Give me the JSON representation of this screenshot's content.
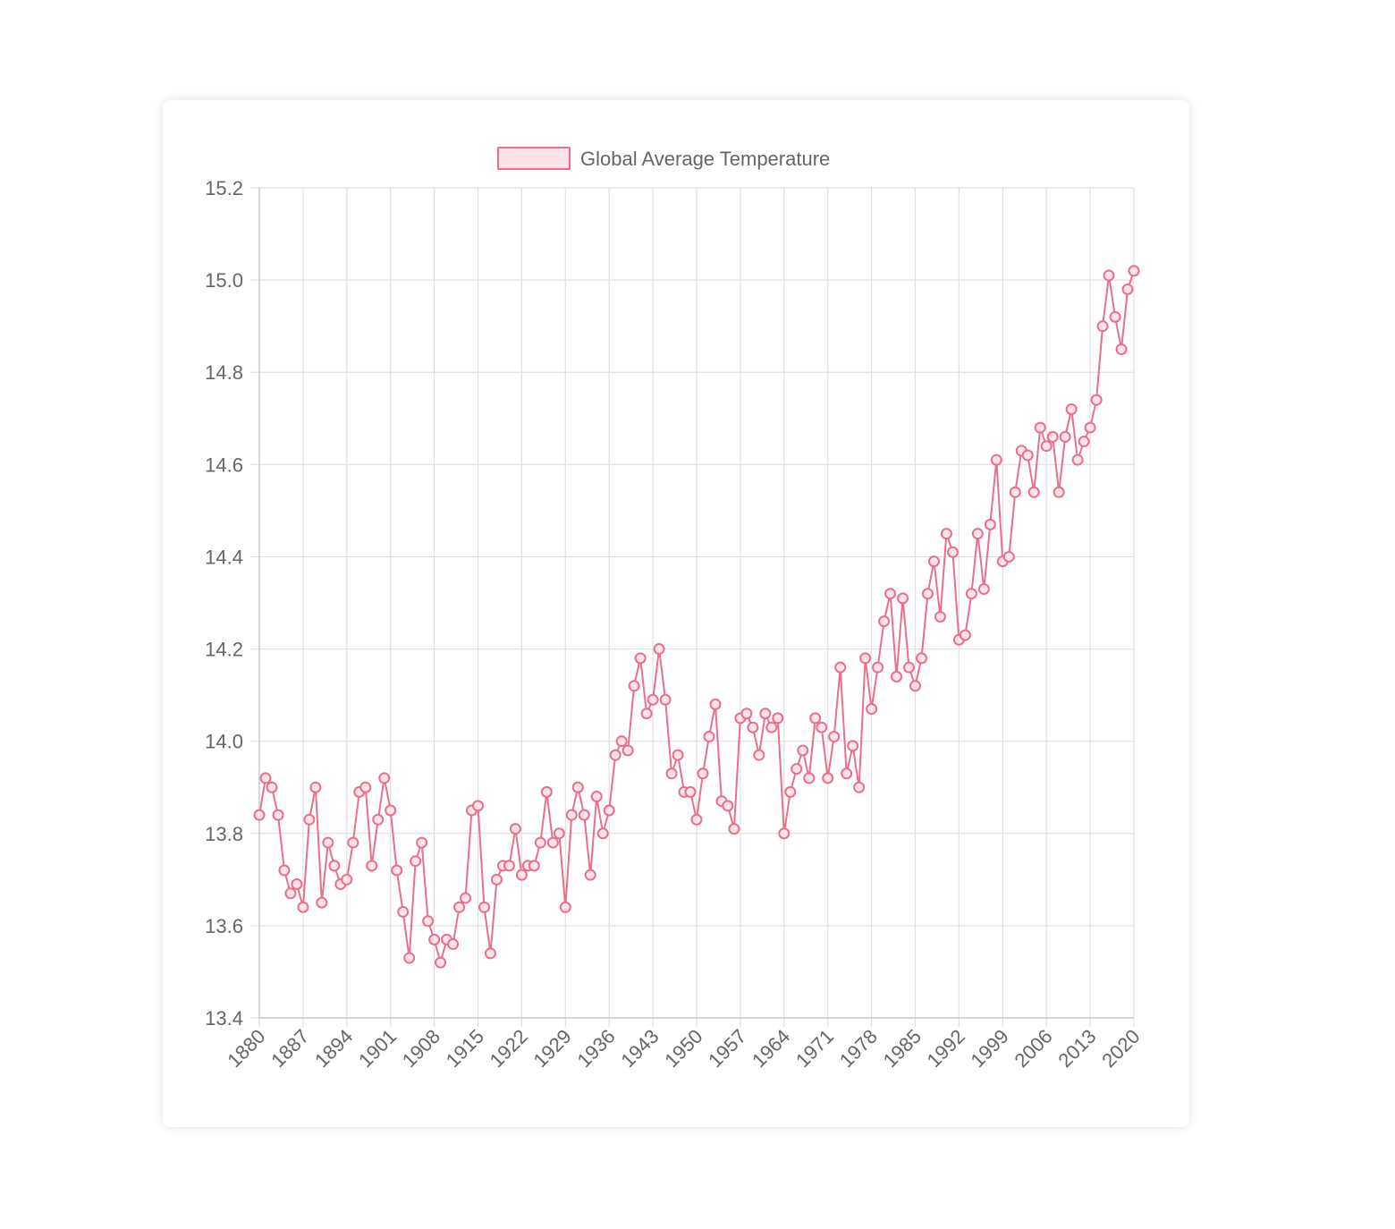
{
  "chart_data": {
    "type": "line",
    "legend_position": "top",
    "grid": true,
    "series": [
      {
        "name": "Global Average Temperature",
        "color": "#e8708a",
        "fill": "#fde2e7",
        "x": [
          1880,
          1881,
          1882,
          1883,
          1884,
          1885,
          1886,
          1887,
          1888,
          1889,
          1890,
          1891,
          1892,
          1893,
          1894,
          1895,
          1896,
          1897,
          1898,
          1899,
          1900,
          1901,
          1902,
          1903,
          1904,
          1905,
          1906,
          1907,
          1908,
          1909,
          1910,
          1911,
          1912,
          1913,
          1914,
          1915,
          1916,
          1917,
          1918,
          1919,
          1920,
          1921,
          1922,
          1923,
          1924,
          1925,
          1926,
          1927,
          1928,
          1929,
          1930,
          1931,
          1932,
          1933,
          1934,
          1935,
          1936,
          1937,
          1938,
          1939,
          1940,
          1941,
          1942,
          1943,
          1944,
          1945,
          1946,
          1947,
          1948,
          1949,
          1950,
          1951,
          1952,
          1953,
          1954,
          1955,
          1956,
          1957,
          1958,
          1959,
          1960,
          1961,
          1962,
          1963,
          1964,
          1965,
          1966,
          1967,
          1968,
          1969,
          1970,
          1971,
          1972,
          1973,
          1974,
          1975,
          1976,
          1977,
          1978,
          1979,
          1980,
          1981,
          1982,
          1983,
          1984,
          1985,
          1986,
          1987,
          1988,
          1989,
          1990,
          1991,
          1992,
          1993,
          1994,
          1995,
          1996,
          1997,
          1998,
          1999,
          2000,
          2001,
          2002,
          2003,
          2004,
          2005,
          2006,
          2007,
          2008,
          2009,
          2010,
          2011,
          2012,
          2013,
          2014,
          2015,
          2016,
          2017,
          2018,
          2019,
          2020
        ],
        "values": [
          13.84,
          13.92,
          13.9,
          13.84,
          13.72,
          13.67,
          13.69,
          13.64,
          13.83,
          13.9,
          13.65,
          13.78,
          13.73,
          13.69,
          13.7,
          13.78,
          13.89,
          13.9,
          13.73,
          13.83,
          13.92,
          13.85,
          13.72,
          13.63,
          13.53,
          13.74,
          13.78,
          13.61,
          13.57,
          13.52,
          13.57,
          13.56,
          13.64,
          13.66,
          13.85,
          13.86,
          13.64,
          13.54,
          13.7,
          13.73,
          13.73,
          13.81,
          13.71,
          13.73,
          13.73,
          13.78,
          13.89,
          13.78,
          13.8,
          13.64,
          13.84,
          13.9,
          13.84,
          13.71,
          13.88,
          13.8,
          13.85,
          13.97,
          14.0,
          13.98,
          14.12,
          14.18,
          14.06,
          14.09,
          14.2,
          14.09,
          13.93,
          13.97,
          13.89,
          13.89,
          13.83,
          13.93,
          14.01,
          14.08,
          13.87,
          13.86,
          13.81,
          14.05,
          14.06,
          14.03,
          13.97,
          14.06,
          14.03,
          14.05,
          13.8,
          13.89,
          13.94,
          13.98,
          13.92,
          14.05,
          14.03,
          13.92,
          14.01,
          14.16,
          13.93,
          13.99,
          13.9,
          14.18,
          14.07,
          14.16,
          14.26,
          14.32,
          14.14,
          14.31,
          14.16,
          14.12,
          14.18,
          14.32,
          14.39,
          14.27,
          14.45,
          14.41,
          14.22,
          14.23,
          14.32,
          14.45,
          14.33,
          14.47,
          14.61,
          14.39,
          14.4,
          14.54,
          14.63,
          14.62,
          14.54,
          14.68,
          14.64,
          14.66,
          14.54,
          14.66,
          14.72,
          14.61,
          14.65,
          14.68,
          14.74,
          14.9,
          15.01,
          14.92,
          14.85,
          14.98,
          15.02
        ]
      }
    ],
    "ylim": [
      13.4,
      15.2
    ],
    "y_ticks": [
      "13.4",
      "13.6",
      "13.8",
      "14.0",
      "14.2",
      "14.4",
      "14.6",
      "14.8",
      "15.0",
      "15.2"
    ],
    "x_tick_labels": [
      "1880",
      "1887",
      "1894",
      "1901",
      "1908",
      "1915",
      "1922",
      "1929",
      "1936",
      "1943",
      "1950",
      "1957",
      "1964",
      "1971",
      "1978",
      "1985",
      "1992",
      "1999",
      "2006",
      "2013",
      "2020"
    ]
  }
}
